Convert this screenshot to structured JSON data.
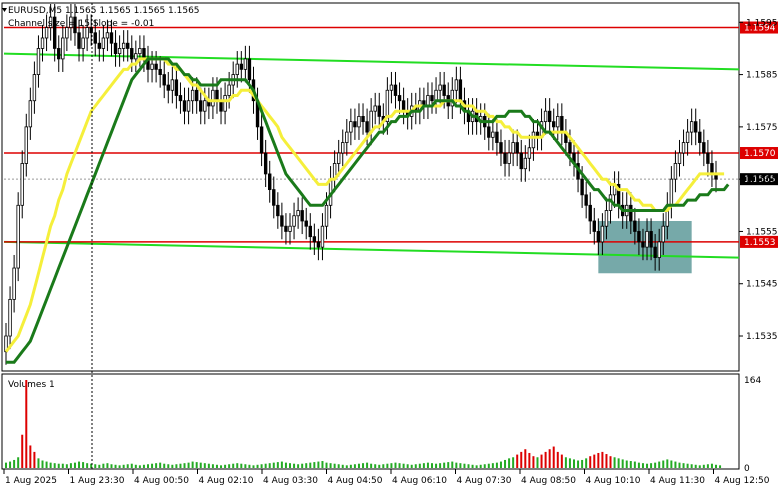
{
  "header": {
    "line1": "EURUSD,M5  1.1565 1.1565 1.1565 1.1565",
    "line2": "Channel size = 15 Slope = -0.01"
  },
  "volumes_label": "Volumes 1",
  "colors": {
    "candle": "#000000",
    "ma_fast": "#f5ef3b",
    "ma_slow": "#1a7a1a",
    "channel": "#22dd22",
    "level": "#dd0000",
    "box": "#5e9a9a",
    "volume": "#22aa22",
    "volume_high": "#dd0000"
  },
  "chart_data": [
    {
      "type": "candlestick",
      "symbol": "EURUSD",
      "timeframe": "M5",
      "y_ticks": [
        1.1535,
        1.1545,
        1.1555,
        1.1565,
        1.1575,
        1.1585,
        1.1595
      ],
      "ylim": [
        1.15285,
        1.15985
      ],
      "x_ticks": [
        "1 Aug 2025",
        "1 Aug 23:30",
        "4 Aug 00:50",
        "4 Aug 02:10",
        "4 Aug 03:30",
        "4 Aug 04:50",
        "4 Aug 06:10",
        "4 Aug 07:30",
        "4 Aug 08:50",
        "4 Aug 10:10",
        "4 Aug 11:30",
        "4 Aug 12:50"
      ],
      "levels": [
        {
          "value": 1.1594,
          "label": "1.1594",
          "color": "#dd0000"
        },
        {
          "value": 1.157,
          "label": "1.1570",
          "color": "#dd0000"
        },
        {
          "value": 1.1553,
          "label": "1.1553",
          "color": "#dd0000"
        }
      ],
      "current_price": {
        "value": 1.1565,
        "label": "1.1565"
      },
      "channel_lines": [
        {
          "from": 1.1589,
          "to": 1.1586
        },
        {
          "from": 1.1553,
          "to": 1.155
        }
      ],
      "highlight_box": {
        "price_top": 1.1557,
        "price_bottom": 1.1547,
        "candle_from": 146,
        "candle_to": 169
      },
      "close": [
        1.1535,
        1.1542,
        1.1548,
        1.156,
        1.1568,
        1.1575,
        1.158,
        1.1585,
        1.159,
        1.1592,
        1.1594,
        1.1596,
        1.159,
        1.1588,
        1.1592,
        1.1594,
        1.1596,
        1.1593,
        1.159,
        1.1592,
        1.1594,
        1.1593,
        1.1591,
        1.159,
        1.1592,
        1.1593,
        1.1591,
        1.1589,
        1.159,
        1.1591,
        1.159,
        1.1588,
        1.1589,
        1.159,
        1.1588,
        1.1586,
        1.1587,
        1.1586,
        1.1585,
        1.1583,
        1.1582,
        1.1584,
        1.1581,
        1.158,
        1.1578,
        1.158,
        1.1582,
        1.158,
        1.1578,
        1.158,
        1.1579,
        1.1582,
        1.158,
        1.1578,
        1.1581,
        1.1583,
        1.1585,
        1.1587,
        1.1586,
        1.1588,
        1.1584,
        1.158,
        1.1575,
        1.157,
        1.1566,
        1.1563,
        1.156,
        1.1558,
        1.1556,
        1.1555,
        1.1556,
        1.1558,
        1.1559,
        1.1557,
        1.1556,
        1.1554,
        1.1553,
        1.1552,
        1.1556,
        1.156,
        1.1565,
        1.1568,
        1.157,
        1.1572,
        1.1574,
        1.1576,
        1.1575,
        1.1577,
        1.1576,
        1.1574,
        1.1578,
        1.1579,
        1.1577,
        1.1576,
        1.1582,
        1.1583,
        1.1581,
        1.158,
        1.1578,
        1.1577,
        1.1579,
        1.1578,
        1.158,
        1.1579,
        1.1581,
        1.158,
        1.1582,
        1.1583,
        1.1581,
        1.1579,
        1.1582,
        1.1584,
        1.158,
        1.1578,
        1.1576,
        1.1578,
        1.1576,
        1.1577,
        1.1575,
        1.1573,
        1.1574,
        1.1572,
        1.157,
        1.1568,
        1.157,
        1.1572,
        1.157,
        1.1567,
        1.1569,
        1.1571,
        1.1574,
        1.1573,
        1.1576,
        1.1578,
        1.1576,
        1.1575,
        1.1577,
        1.1574,
        1.1572,
        1.157,
        1.1568,
        1.1565,
        1.1562,
        1.156,
        1.1557,
        1.1555,
        1.1553,
        1.1556,
        1.1559,
        1.1562,
        1.1564,
        1.156,
        1.1558,
        1.156,
        1.1557,
        1.1555,
        1.1553,
        1.1552,
        1.1555,
        1.1552,
        1.155,
        1.1553,
        1.1556,
        1.156,
        1.1565,
        1.1568,
        1.157,
        1.1572,
        1.1574,
        1.1576,
        1.1574,
        1.1572,
        1.157,
        1.1568,
        1.1566,
        1.1565
      ],
      "ma_fast": [
        1.1532,
        1.1533,
        1.1534,
        1.1535,
        1.1537,
        1.1539,
        1.1541,
        1.1544,
        1.1547,
        1.155,
        1.1553,
        1.1556,
        1.1558,
        1.1561,
        1.1563,
        1.1566,
        1.1568,
        1.157,
        1.1572,
        1.1574,
        1.1576,
        1.1578,
        1.1579,
        1.158,
        1.1581,
        1.1582,
        1.1583,
        1.1584,
        1.1585,
        1.1586,
        1.1586,
        1.1587,
        1.1587,
        1.1588,
        1.1588,
        1.1588,
        1.1588,
        1.1588,
        1.1588,
        1.1588,
        1.1587,
        1.1587,
        1.1586,
        1.1586,
        1.1585,
        1.1584,
        1.1583,
        1.1583,
        1.1582,
        1.1581,
        1.158,
        1.158,
        1.158,
        1.158,
        1.158,
        1.158,
        1.1581,
        1.1581,
        1.1582,
        1.1582,
        1.1582,
        1.1581,
        1.158,
        1.1579,
        1.1578,
        1.1577,
        1.1576,
        1.1575,
        1.1573,
        1.1572,
        1.1571,
        1.157,
        1.1569,
        1.1568,
        1.1567,
        1.1566,
        1.1565,
        1.1564,
        1.1564,
        1.1564,
        1.1565,
        1.1565,
        1.1566,
        1.1567,
        1.1568,
        1.1569,
        1.157,
        1.1571,
        1.1572,
        1.1573,
        1.1574,
        1.1575,
        1.1575,
        1.1576,
        1.1577,
        1.1577,
        1.1578,
        1.1578,
        1.1578,
        1.1578,
        1.1578,
        1.1579,
        1.1579,
        1.1579,
        1.1579,
        1.1579,
        1.1579,
        1.1579,
        1.158,
        1.158,
        1.158,
        1.158,
        1.158,
        1.1579,
        1.1579,
        1.1579,
        1.1578,
        1.1578,
        1.1578,
        1.1577,
        1.1577,
        1.1576,
        1.1576,
        1.1575,
        1.1575,
        1.1574,
        1.1574,
        1.1573,
        1.1573,
        1.1573,
        1.1573,
        1.1573,
        1.1573,
        1.1574,
        1.1574,
        1.1574,
        1.1574,
        1.1574,
        1.1574,
        1.1573,
        1.1572,
        1.1571,
        1.157,
        1.1569,
        1.1568,
        1.1567,
        1.1566,
        1.1565,
        1.1565,
        1.1564,
        1.1564,
        1.1563,
        1.1563,
        1.1563,
        1.1562,
        1.1561,
        1.1561,
        1.156,
        1.156,
        1.156,
        1.1559,
        1.1559,
        1.1559,
        1.1559,
        1.156,
        1.156,
        1.1561,
        1.1562,
        1.1563,
        1.1564,
        1.1565,
        1.1566,
        1.1566,
        1.1566,
        1.1566,
        1.1566,
        1.1566,
        1.1566
      ],
      "ma_slow": [
        1.153,
        1.153,
        1.153,
        1.1531,
        1.1532,
        1.1533,
        1.1534,
        1.1536,
        1.1538,
        1.154,
        1.1542,
        1.1544,
        1.1546,
        1.1548,
        1.155,
        1.1552,
        1.1554,
        1.1556,
        1.1558,
        1.156,
        1.1562,
        1.1564,
        1.1566,
        1.1568,
        1.157,
        1.1572,
        1.1574,
        1.1576,
        1.1578,
        1.158,
        1.1582,
        1.1584,
        1.1585,
        1.1586,
        1.1587,
        1.1588,
        1.1588,
        1.1588,
        1.1588,
        1.1588,
        1.1588,
        1.1587,
        1.1587,
        1.1586,
        1.1585,
        1.1585,
        1.1584,
        1.1584,
        1.1583,
        1.1583,
        1.1583,
        1.1583,
        1.1583,
        1.1584,
        1.1584,
        1.1584,
        1.1584,
        1.1584,
        1.1584,
        1.1584,
        1.1583,
        1.1582,
        1.158,
        1.1578,
        1.1576,
        1.1574,
        1.1572,
        1.157,
        1.1568,
        1.1566,
        1.1565,
        1.1564,
        1.1563,
        1.1562,
        1.1561,
        1.156,
        1.156,
        1.156,
        1.156,
        1.1561,
        1.1562,
        1.1563,
        1.1564,
        1.1565,
        1.1566,
        1.1567,
        1.1568,
        1.1569,
        1.157,
        1.1571,
        1.1572,
        1.1573,
        1.1574,
        1.1574,
        1.1575,
        1.1576,
        1.1576,
        1.1577,
        1.1577,
        1.1577,
        1.1578,
        1.1578,
        1.1578,
        1.1579,
        1.1579,
        1.1579,
        1.158,
        1.158,
        1.158,
        1.158,
        1.158,
        1.1579,
        1.1579,
        1.1578,
        1.1578,
        1.1577,
        1.1577,
        1.1576,
        1.1576,
        1.1576,
        1.1576,
        1.1577,
        1.1577,
        1.1577,
        1.1578,
        1.1578,
        1.1578,
        1.1578,
        1.1577,
        1.1577,
        1.1576,
        1.1576,
        1.1575,
        1.1574,
        1.1574,
        1.1573,
        1.1572,
        1.1571,
        1.157,
        1.1569,
        1.1568,
        1.1567,
        1.1566,
        1.1565,
        1.1564,
        1.1563,
        1.1563,
        1.1562,
        1.1561,
        1.1561,
        1.156,
        1.156,
        1.1559,
        1.1559,
        1.1559,
        1.1559,
        1.1559,
        1.1559,
        1.1559,
        1.1559,
        1.1559,
        1.1559,
        1.1559,
        1.156,
        1.156,
        1.156,
        1.156,
        1.156,
        1.1561,
        1.1561,
        1.1561,
        1.1562,
        1.1562,
        1.1562,
        1.1563,
        1.1563,
        1.1563,
        1.1563,
        1.1564
      ]
    },
    {
      "type": "bar",
      "series": "Volumes",
      "ylim": [
        0,
        164
      ],
      "y_ticks": [
        0,
        164
      ],
      "values": [
        10,
        12,
        15,
        20,
        62,
        164,
        42,
        30,
        18,
        14,
        12,
        10,
        9,
        8,
        8,
        7,
        9,
        10,
        12,
        11,
        9,
        8,
        7,
        6,
        8,
        9,
        7,
        6,
        5,
        6,
        7,
        8,
        6,
        5,
        6,
        7,
        8,
        9,
        10,
        8,
        7,
        6,
        7,
        8,
        9,
        10,
        12,
        11,
        10,
        9,
        8,
        7,
        6,
        5,
        6,
        7,
        8,
        9,
        8,
        7,
        6,
        5,
        6,
        7,
        8,
        9,
        10,
        11,
        12,
        10,
        9,
        8,
        7,
        8,
        9,
        10,
        11,
        12,
        13,
        10,
        9,
        8,
        7,
        6,
        5,
        6,
        7,
        8,
        9,
        10,
        8,
        7,
        6,
        7,
        8,
        9,
        10,
        9,
        8,
        7,
        6,
        7,
        8,
        9,
        10,
        9,
        8,
        9,
        10,
        11,
        12,
        10,
        9,
        8,
        7,
        6,
        5,
        6,
        7,
        8,
        9,
        10,
        12,
        15,
        18,
        20,
        25,
        30,
        35,
        28,
        22,
        20,
        25,
        30,
        35,
        40,
        30,
        25,
        20,
        18,
        16,
        14,
        15,
        18,
        22,
        25,
        28,
        30,
        26,
        22,
        20,
        18,
        16,
        14,
        13,
        12,
        10,
        9,
        8,
        9,
        10,
        12,
        14,
        16,
        14,
        12,
        10,
        9,
        8,
        7,
        6,
        5,
        6,
        7,
        8,
        6,
        5
      ]
    }
  ]
}
